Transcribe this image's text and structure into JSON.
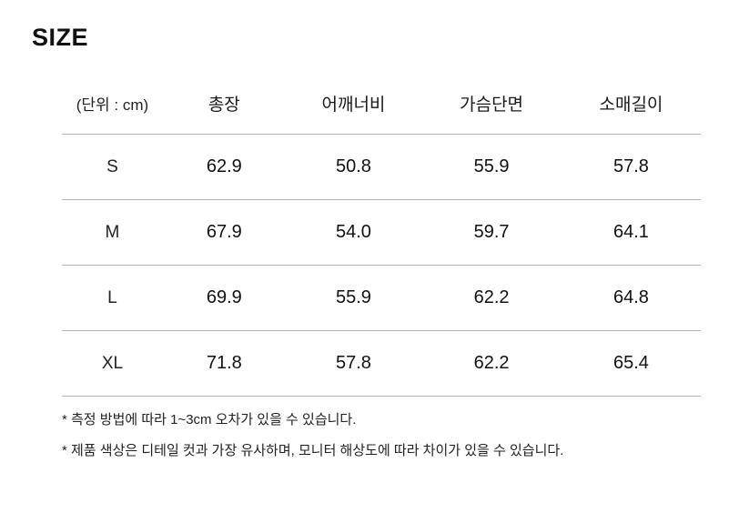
{
  "page_title": "SIZE",
  "table": {
    "unit_label": "(단위 : cm)",
    "columns": [
      "총장",
      "어깨너비",
      "가슴단면",
      "소매길이"
    ],
    "rows": [
      {
        "size": "S",
        "values": [
          "62.9",
          "50.8",
          "55.9",
          "57.8"
        ]
      },
      {
        "size": "M",
        "values": [
          "67.9",
          "54.0",
          "59.7",
          "64.1"
        ]
      },
      {
        "size": "L",
        "values": [
          "69.9",
          "55.9",
          "62.2",
          "64.8"
        ]
      },
      {
        "size": "XL",
        "values": [
          "71.8",
          "57.8",
          "62.2",
          "65.4"
        ]
      }
    ]
  },
  "notes": [
    "* 측정 방법에 따라 1~3cm 오차가 있을 수 있습니다.",
    "* 제품 색상은 디테일 컷과 가장 유사하며, 모니터 해상도에 따라 차이가 있을 수 있습니다."
  ],
  "colors": {
    "text": "#111111",
    "divider": "#b5b5b5",
    "background": "#ffffff"
  }
}
